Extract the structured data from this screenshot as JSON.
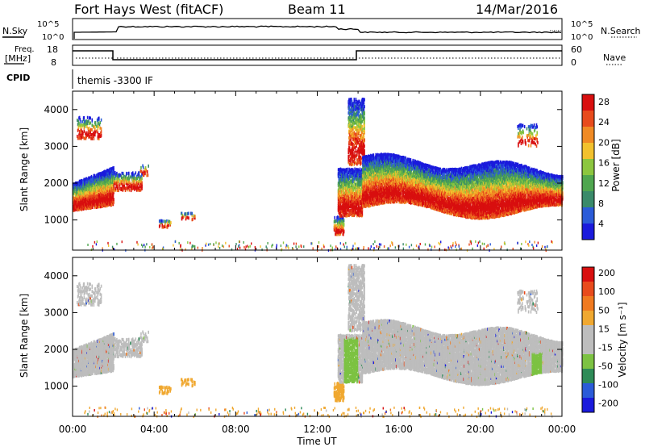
{
  "header": {
    "station": "Fort Hays West (fitACF)",
    "beam": "Beam 11",
    "date": "14/Mar/2016"
  },
  "strip_labels": {
    "nsky": "N.Sky",
    "nsearch": "N.Search",
    "freq": "Freq.",
    "freq_unit": "[MHz]",
    "nave": "Nave",
    "cpid": "CPID",
    "cpid_value": "themis -3300 IF",
    "noise_ticks_left": [
      "10^5",
      "10^0"
    ],
    "noise_ticks_right": [
      "10^5",
      "10^0"
    ],
    "freq_ticks": [
      "18",
      "8"
    ],
    "nave_ticks": [
      "60",
      "0"
    ]
  },
  "colors": {
    "power_scale": [
      "#1a1adc",
      "#2b5bd8",
      "#3a8a6a",
      "#4fa64f",
      "#8cc63f",
      "#f2c12e",
      "#f08a24",
      "#e84b1c",
      "#d80f0f"
    ],
    "velocity_scale": [
      "#1a1adc",
      "#2b5bd8",
      "#2e8b57",
      "#7cc242",
      "#bdbdbd",
      "#bdbdbd",
      "#f0a830",
      "#f07a20",
      "#e84b1c",
      "#d80f0f"
    ],
    "ground_scatter": "#bdbdbd"
  },
  "chart_data": [
    {
      "type": "heatmap",
      "title": "",
      "xlabel": "Time UT",
      "ylabel": "Slant Range [km]",
      "x_ticks": [
        "00:00",
        "04:00",
        "08:00",
        "12:00",
        "16:00",
        "20:00",
        "00:00"
      ],
      "xlim_hours": [
        0,
        24
      ],
      "y_ticks": [
        1000,
        2000,
        3000,
        4000
      ],
      "ylim": [
        180,
        4500
      ],
      "colorbar": {
        "label": "Power [dB]",
        "ticks": [
          "4",
          "8",
          "12",
          "16",
          "20",
          "24",
          "28"
        ],
        "range": [
          0,
          30
        ]
      },
      "features": [
        {
          "t_start": 0.0,
          "t_end": 2.0,
          "range_center": 1700,
          "note": "strong scatter rising to ~2400 km"
        },
        {
          "t_start": 13.0,
          "t_end": 14.2,
          "range_center": 1400,
          "note": "burst near 13:00-14:00"
        },
        {
          "t_start": 14.2,
          "t_end": 24.0,
          "range_center": 1700,
          "note": "persistent band 1300-2400 km"
        }
      ]
    },
    {
      "type": "heatmap",
      "title": "",
      "xlabel": "Time UT",
      "ylabel": "Slant Range [km]",
      "x_ticks": [
        "00:00",
        "04:00",
        "08:00",
        "12:00",
        "16:00",
        "20:00",
        "00:00"
      ],
      "xlim_hours": [
        0,
        24
      ],
      "y_ticks": [
        1000,
        2000,
        3000,
        4000
      ],
      "ylim": [
        180,
        4500
      ],
      "colorbar": {
        "label": "Velocity [m s⁻¹]",
        "ticks": [
          "200",
          "100",
          "50",
          "15",
          "-15",
          "-50",
          "-100",
          "-200"
        ],
        "range": [
          -250,
          250
        ]
      }
    }
  ]
}
